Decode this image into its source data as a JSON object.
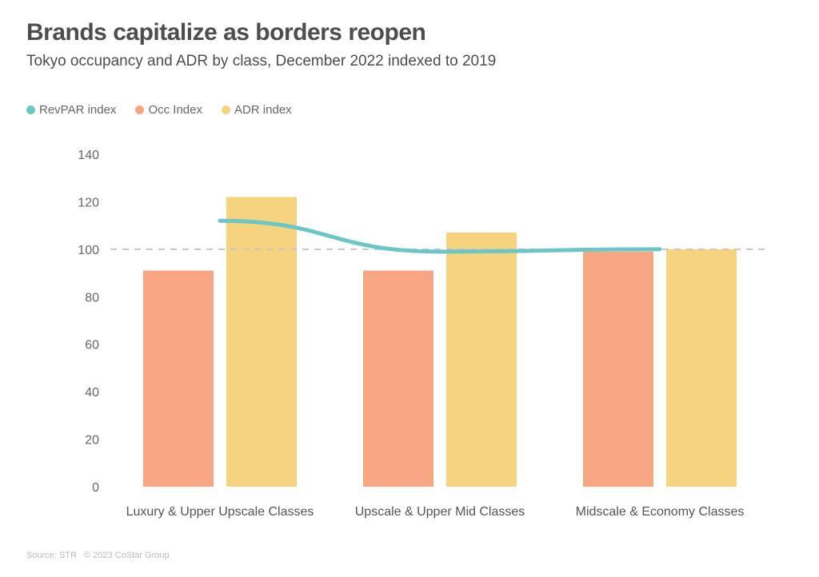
{
  "colors": {
    "revpar": "#6cc6c6",
    "occ": "#f7a583",
    "adr": "#f6d37e",
    "reference": "#c8c8c8",
    "axis_text": "#666666"
  },
  "legend": [
    {
      "label": "RevPAR index",
      "color": "#6cc6c6"
    },
    {
      "label": "Occ Index",
      "color": "#f7a583"
    },
    {
      "label": "ADR index",
      "color": "#f6d37e"
    }
  ],
  "source": {
    "text": "Source: STR",
    "copyright": "© 2023 CoStar Group"
  },
  "chart_data": {
    "type": "bar",
    "title": "Brands capitalize as borders reopen",
    "subtitle": "Tokyo occupancy and ADR by class, December 2022 indexed to 2019",
    "categories": [
      "Luxury & Upper Upscale Classes",
      "Upscale & Upper Mid Classes",
      "Midscale & Economy Classes"
    ],
    "series": [
      {
        "name": "Occ Index",
        "type": "bar",
        "values": [
          91,
          91,
          99
        ]
      },
      {
        "name": "ADR index",
        "type": "bar",
        "values": [
          122,
          107,
          100
        ]
      },
      {
        "name": "RevPAR index",
        "type": "line",
        "values": [
          112,
          99,
          100
        ]
      }
    ],
    "yticks": [
      0,
      20,
      40,
      60,
      80,
      100,
      120,
      140
    ],
    "ylim": [
      0,
      140
    ],
    "reference_line": 100,
    "xlabel": "",
    "ylabel": "",
    "grid": false,
    "legend_position": "top-left"
  }
}
